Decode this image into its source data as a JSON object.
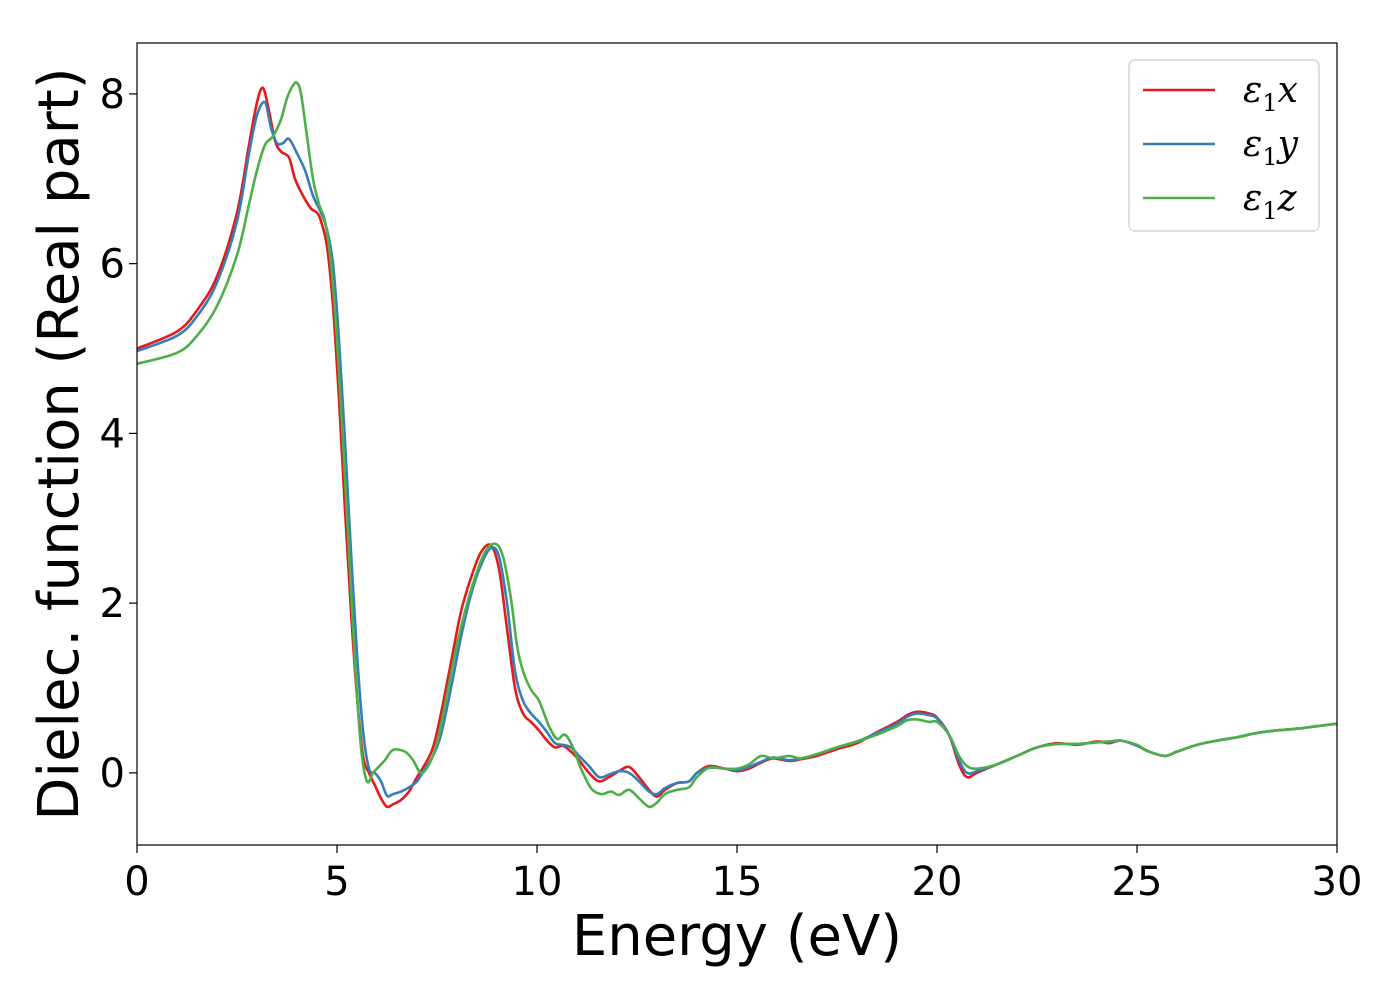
{
  "chart_data": {
    "type": "line",
    "xlabel": "Energy (eV)",
    "ylabel": "Dielec. function (Real part)",
    "xlim": [
      0,
      30
    ],
    "ylim": [
      -0.85,
      8.6
    ],
    "xticks": [
      "0",
      "5",
      "10",
      "15",
      "20",
      "25",
      "30"
    ],
    "yticks": [
      "0",
      "2",
      "4",
      "6",
      "8"
    ],
    "grid": false,
    "legend_position": "top-right",
    "series": [
      {
        "name": "ε₁x",
        "legend_main": "ε",
        "legend_sub": "1",
        "legend_suffix": "x",
        "color": "#e41a1c",
        "x": [
          0,
          1,
          1.5,
          2,
          2.5,
          2.8,
          3,
          3.15,
          3.3,
          3.45,
          3.6,
          3.8,
          3.95,
          4.15,
          4.35,
          4.5,
          4.6,
          4.75,
          4.9,
          5.05,
          5.2,
          5.35,
          5.5,
          5.65,
          5.8,
          5.95,
          6.1,
          6.25,
          6.4,
          6.6,
          6.8,
          7.0,
          7.2,
          7.4,
          7.6,
          7.85,
          8.1,
          8.35,
          8.6,
          8.85,
          9.05,
          9.25,
          9.45,
          9.65,
          9.85,
          10.05,
          10.25,
          10.45,
          10.65,
          10.85,
          11.05,
          11.3,
          11.55,
          11.8,
          12.05,
          12.3,
          12.55,
          12.8,
          13.0,
          13.2,
          13.5,
          13.8,
          14.0,
          14.3,
          14.7,
          15.0,
          15.3,
          15.6,
          15.9,
          16.3,
          16.6,
          17.0,
          17.5,
          18.0,
          18.5,
          19.0,
          19.25,
          19.5,
          19.8,
          20.0,
          20.3,
          20.55,
          20.75,
          21.0,
          21.5,
          22.0,
          22.5,
          23.0,
          23.5,
          24.0,
          24.3,
          24.6,
          25.0,
          25.3,
          25.7,
          26.0,
          26.5,
          27.0,
          27.5,
          28.0,
          28.5,
          29.0,
          29.5,
          30.0
        ],
        "y": [
          5.0,
          5.2,
          5.45,
          5.85,
          6.6,
          7.4,
          7.9,
          8.07,
          7.8,
          7.45,
          7.32,
          7.25,
          7.0,
          6.8,
          6.65,
          6.6,
          6.5,
          6.2,
          5.5,
          4.4,
          3.1,
          1.9,
          0.9,
          0.2,
          0.0,
          -0.15,
          -0.3,
          -0.4,
          -0.37,
          -0.32,
          -0.22,
          -0.05,
          0.1,
          0.3,
          0.7,
          1.3,
          1.9,
          2.3,
          2.6,
          2.68,
          2.4,
          1.7,
          1.0,
          0.7,
          0.6,
          0.5,
          0.38,
          0.3,
          0.32,
          0.25,
          0.15,
          0.0,
          -0.1,
          -0.05,
          0.02,
          0.07,
          -0.05,
          -0.2,
          -0.28,
          -0.2,
          -0.12,
          -0.1,
          0.0,
          0.08,
          0.05,
          0.02,
          0.05,
          0.12,
          0.17,
          0.14,
          0.16,
          0.2,
          0.28,
          0.35,
          0.48,
          0.6,
          0.68,
          0.72,
          0.7,
          0.65,
          0.45,
          0.1,
          -0.05,
          0.0,
          0.1,
          0.2,
          0.3,
          0.35,
          0.33,
          0.37,
          0.35,
          0.38,
          0.32,
          0.25,
          0.2,
          0.25,
          0.33,
          0.38,
          0.42,
          0.47,
          0.5,
          0.52,
          0.55,
          0.58
        ]
      },
      {
        "name": "ε₁y",
        "legend_main": "ε",
        "legend_sub": "1",
        "legend_suffix": "y",
        "color": "#377eb8",
        "x": [
          0,
          1,
          1.5,
          2,
          2.5,
          2.8,
          3,
          3.2,
          3.35,
          3.5,
          3.65,
          3.8,
          4.0,
          4.2,
          4.4,
          4.6,
          4.75,
          4.9,
          5.05,
          5.2,
          5.35,
          5.5,
          5.65,
          5.8,
          5.95,
          6.1,
          6.25,
          6.4,
          6.6,
          6.8,
          7.0,
          7.2,
          7.4,
          7.6,
          7.85,
          8.1,
          8.35,
          8.6,
          8.85,
          9.05,
          9.25,
          9.45,
          9.65,
          9.85,
          10.05,
          10.25,
          10.45,
          10.65,
          10.85,
          11.05,
          11.3,
          11.55,
          11.8,
          12.05,
          12.3,
          12.55,
          12.8,
          13.0,
          13.2,
          13.5,
          13.8,
          14.0,
          14.3,
          14.7,
          15.0,
          15.3,
          15.6,
          15.9,
          16.3,
          16.6,
          17.0,
          17.5,
          18.0,
          18.5,
          19.0,
          19.25,
          19.5,
          19.8,
          20.0,
          20.3,
          20.55,
          20.75,
          21.0,
          21.5,
          22.0,
          22.5,
          23.0,
          23.5,
          24.0,
          24.3,
          24.6,
          25.0,
          25.3,
          25.7,
          26.0,
          26.5,
          27.0,
          27.5,
          28.0,
          28.5,
          29.0,
          29.5,
          30.0
        ],
        "y": [
          4.97,
          5.15,
          5.38,
          5.78,
          6.5,
          7.3,
          7.75,
          7.9,
          7.6,
          7.42,
          7.42,
          7.47,
          7.3,
          7.1,
          6.8,
          6.6,
          6.4,
          6.0,
          5.1,
          3.9,
          2.6,
          1.4,
          0.5,
          0.05,
          0.0,
          -0.1,
          -0.27,
          -0.25,
          -0.22,
          -0.17,
          -0.1,
          0.05,
          0.2,
          0.45,
          1.0,
          1.6,
          2.1,
          2.45,
          2.65,
          2.55,
          2.0,
          1.2,
          0.85,
          0.7,
          0.6,
          0.48,
          0.35,
          0.33,
          0.3,
          0.2,
          0.08,
          -0.05,
          -0.02,
          0.02,
          0.0,
          -0.1,
          -0.22,
          -0.25,
          -0.18,
          -0.12,
          -0.1,
          0.0,
          0.06,
          0.05,
          0.03,
          0.07,
          0.13,
          0.18,
          0.15,
          0.17,
          0.22,
          0.3,
          0.37,
          0.47,
          0.58,
          0.66,
          0.7,
          0.68,
          0.64,
          0.45,
          0.15,
          0.0,
          0.02,
          0.1,
          0.2,
          0.3,
          0.34,
          0.34,
          0.36,
          0.36,
          0.38,
          0.32,
          0.25,
          0.2,
          0.25,
          0.33,
          0.38,
          0.42,
          0.47,
          0.5,
          0.52,
          0.55,
          0.58
        ]
      },
      {
        "name": "ε₁z",
        "legend_main": "ε",
        "legend_sub": "1",
        "legend_suffix": "z",
        "color": "#4daf4a",
        "x": [
          0,
          1,
          1.5,
          2,
          2.5,
          2.8,
          3.0,
          3.2,
          3.4,
          3.6,
          3.75,
          3.9,
          4.0,
          4.1,
          4.25,
          4.4,
          4.55,
          4.7,
          4.85,
          5.0,
          5.15,
          5.3,
          5.45,
          5.6,
          5.75,
          5.9,
          6.0,
          6.2,
          6.4,
          6.7,
          6.9,
          7.1,
          7.3,
          7.5,
          7.7,
          7.95,
          8.2,
          8.45,
          8.7,
          8.95,
          9.15,
          9.35,
          9.5,
          9.65,
          9.85,
          10.05,
          10.3,
          10.5,
          10.7,
          10.9,
          11.1,
          11.35,
          11.6,
          11.85,
          12.05,
          12.3,
          12.55,
          12.8,
          13.0,
          13.2,
          13.5,
          13.8,
          14.0,
          14.3,
          14.7,
          15.0,
          15.3,
          15.6,
          15.9,
          16.3,
          16.6,
          17.0,
          17.5,
          18.0,
          18.5,
          19.0,
          19.25,
          19.5,
          19.8,
          20.0,
          20.3,
          20.55,
          20.75,
          21.0,
          21.5,
          22.0,
          22.5,
          23.0,
          23.5,
          24.0,
          24.3,
          24.6,
          25.0,
          25.3,
          25.7,
          26.0,
          26.5,
          27.0,
          27.5,
          28.0,
          28.5,
          29.0,
          29.5,
          30.0
        ],
        "y": [
          4.82,
          4.95,
          5.15,
          5.5,
          6.1,
          6.7,
          7.1,
          7.4,
          7.5,
          7.7,
          7.95,
          8.1,
          8.13,
          8.0,
          7.5,
          7.0,
          6.7,
          6.5,
          6.0,
          5.1,
          3.9,
          2.6,
          1.3,
          0.3,
          -0.1,
          0.0,
          0.05,
          0.15,
          0.27,
          0.25,
          0.15,
          0.0,
          0.1,
          0.35,
          0.8,
          1.4,
          1.9,
          2.3,
          2.6,
          2.7,
          2.55,
          2.05,
          1.5,
          1.2,
          0.98,
          0.85,
          0.55,
          0.4,
          0.45,
          0.3,
          0.05,
          -0.18,
          -0.25,
          -0.22,
          -0.26,
          -0.2,
          -0.3,
          -0.4,
          -0.35,
          -0.25,
          -0.2,
          -0.17,
          -0.05,
          0.06,
          0.05,
          0.05,
          0.1,
          0.2,
          0.17,
          0.2,
          0.17,
          0.22,
          0.3,
          0.37,
          0.45,
          0.55,
          0.62,
          0.63,
          0.6,
          0.6,
          0.45,
          0.2,
          0.08,
          0.05,
          0.1,
          0.2,
          0.3,
          0.34,
          0.34,
          0.36,
          0.37,
          0.38,
          0.33,
          0.25,
          0.2,
          0.25,
          0.33,
          0.38,
          0.42,
          0.47,
          0.5,
          0.52,
          0.55,
          0.58
        ]
      }
    ]
  }
}
